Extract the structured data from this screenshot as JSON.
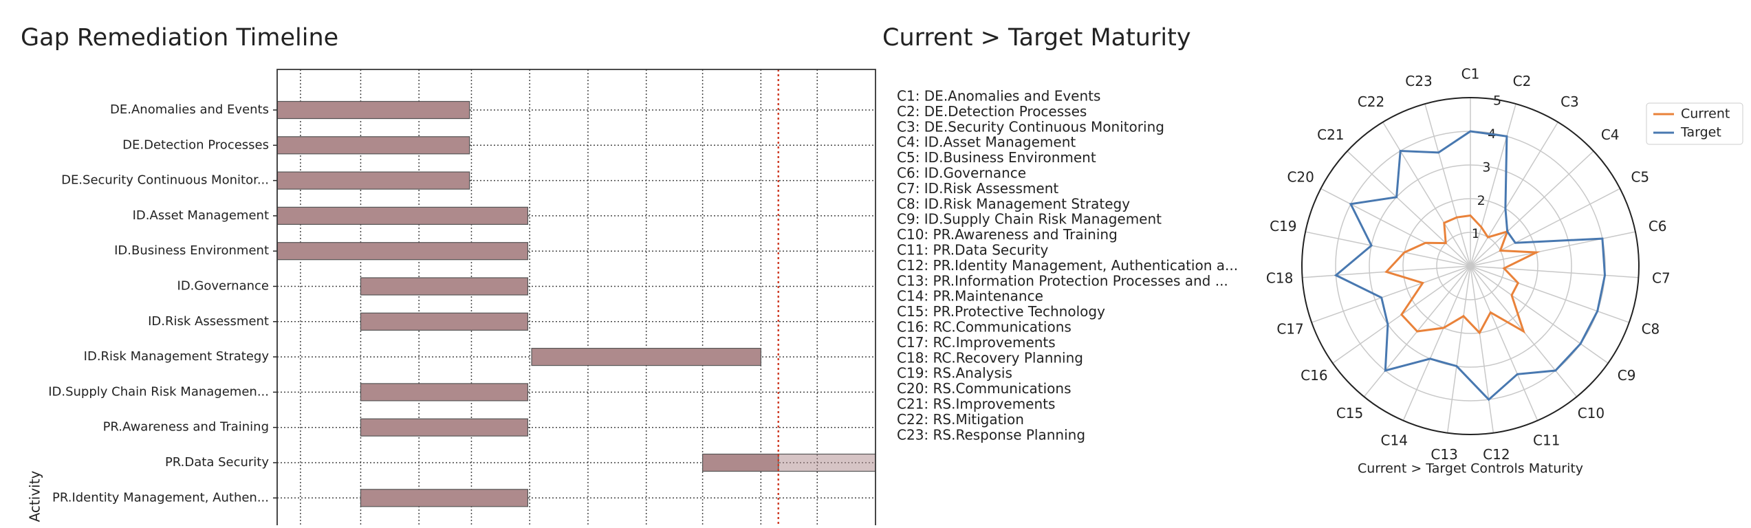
{
  "chart_data": [
    {
      "type": "gantt",
      "title": "Gap Remediation Timeline",
      "y_label": "Activity",
      "categories": [
        "DE.Anomalies and Events",
        "DE.Detection Processes",
        "DE.Security Continuous Monitor...",
        "ID.Asset Management",
        "ID.Business Environment",
        "ID.Governance",
        "ID.Risk Assessment",
        "ID.Risk Management Strategy",
        "ID.Supply Chain Risk Managemen...",
        "PR.Awareness and Training",
        "PR.Data Security",
        "PR.Identity Management, Authen..."
      ],
      "starts": [
        0,
        0,
        0,
        0,
        0,
        43,
        43,
        131,
        43,
        43,
        219,
        43
      ],
      "ends": [
        99,
        99,
        99,
        129,
        129,
        129,
        129,
        249,
        129,
        129,
        320,
        129
      ],
      "today": 258,
      "xlim": [
        0,
        308
      ],
      "xticks": [
        12,
        43,
        73,
        100,
        130,
        160,
        190,
        219,
        249,
        278
      ],
      "color": "#ae8a8c",
      "grid": true
    },
    {
      "type": "radar",
      "title": "Current > Target Maturity",
      "x_label": "Current > Target Controls Maturity",
      "key": [
        "C1: DE.Anomalies and Events",
        "C2: DE.Detection Processes",
        "C3: DE.Security Continuous Monitoring",
        "C4: ID.Asset Management",
        "C5: ID.Business Environment",
        "C6: ID.Governance",
        "C7: ID.Risk Assessment",
        "C8: ID.Risk Management Strategy",
        "C9: ID.Supply Chain Risk Management",
        "C10: PR.Awareness and Training",
        "C11: PR.Data Security",
        "C12: PR.Identity Management, Authentication a...",
        "C13: PR.Information Protection Processes and ...",
        "C14: PR.Maintenance",
        "C15: PR.Protective Technology",
        "C16: RC.Communications",
        "C17: RC.Improvements",
        "C18: RC.Recovery Planning",
        "C19: RS.Analysis",
        "C20: RS.Communications",
        "C21: RS.Improvements",
        "C22: RS.Mitigation",
        "C23: RS.Response Planning"
      ],
      "categories": [
        "C1",
        "C2",
        "C3",
        "C4",
        "C5",
        "C6",
        "C7",
        "C8",
        "C9",
        "C10",
        "C11",
        "C12",
        "C13",
        "C14",
        "C15",
        "C16",
        "C17",
        "C18",
        "C19",
        "C20",
        "C21",
        "C22",
        "C23"
      ],
      "series": [
        {
          "name": "Current",
          "color": "#e9823a",
          "values": [
            1.5,
            1.2,
            1,
            1.5,
            1,
            2,
            1,
            1.5,
            1.5,
            2.5,
            1.5,
            2,
            1.5,
            2,
            2.5,
            2.5,
            1.5,
            2.5,
            2,
            1.5,
            1,
            1.5,
            1.5
          ]
        },
        {
          "name": "Target",
          "color": "#4878b0",
          "values": [
            4,
            4,
            2,
            1.5,
            1.5,
            4,
            4,
            4,
            4,
            4,
            3.5,
            4,
            3,
            3,
            4,
            3,
            2.8,
            4,
            3,
            4,
            3,
            4,
            3.5
          ]
        }
      ],
      "rlim": [
        0,
        5
      ],
      "rticks": [
        1,
        2,
        3,
        4,
        5
      ],
      "legend": "upper right"
    }
  ]
}
